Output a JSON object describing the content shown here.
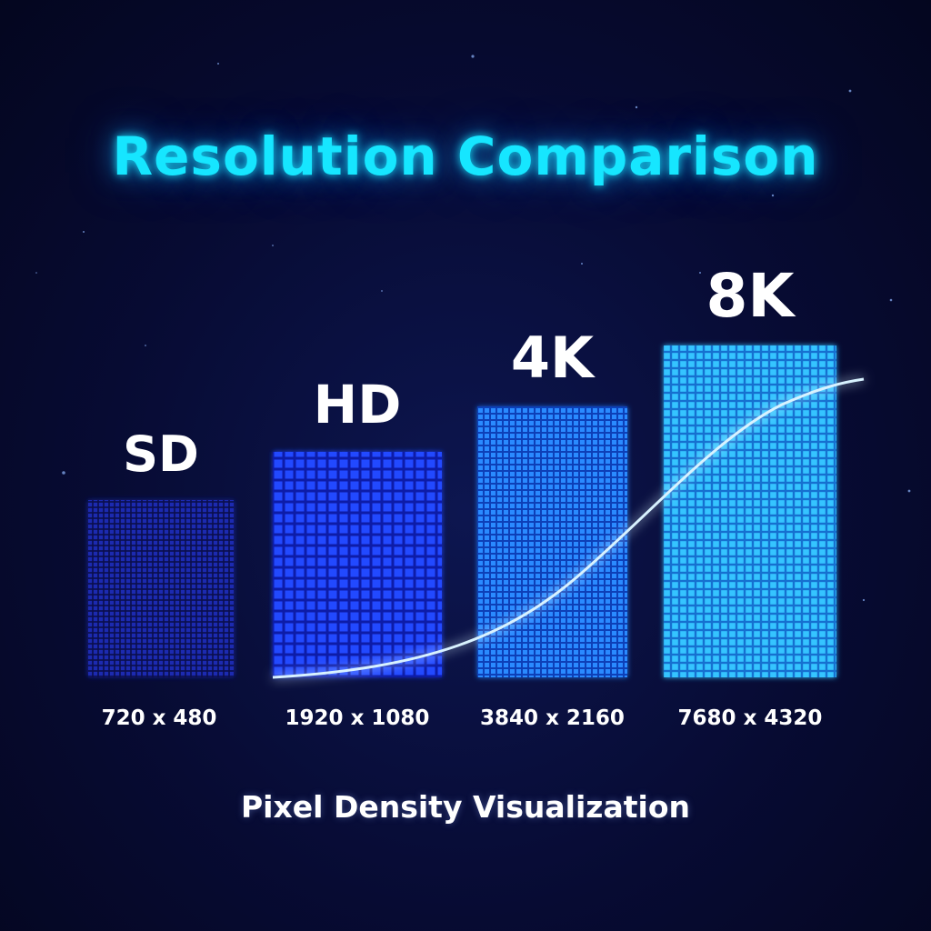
{
  "chart_data": {
    "type": "bar",
    "title": "Resolution Comparison",
    "subtitle": "Pixel Density Visualization",
    "categories": [
      "SD",
      "HD",
      "4K",
      "8K"
    ],
    "tick_labels": [
      "720 x 480",
      "1920 x 1080",
      "3840 x 2160",
      "7680 x 4320"
    ],
    "values": [
      1,
      2,
      3,
      4
    ],
    "ylim": [
      0,
      4.6
    ],
    "grid": false,
    "legend": "none",
    "colors": [
      "#101a9a",
      "#1b3cff",
      "#1d7cff",
      "#22b8ff"
    ],
    "curve": "rising glow line across bars"
  }
}
